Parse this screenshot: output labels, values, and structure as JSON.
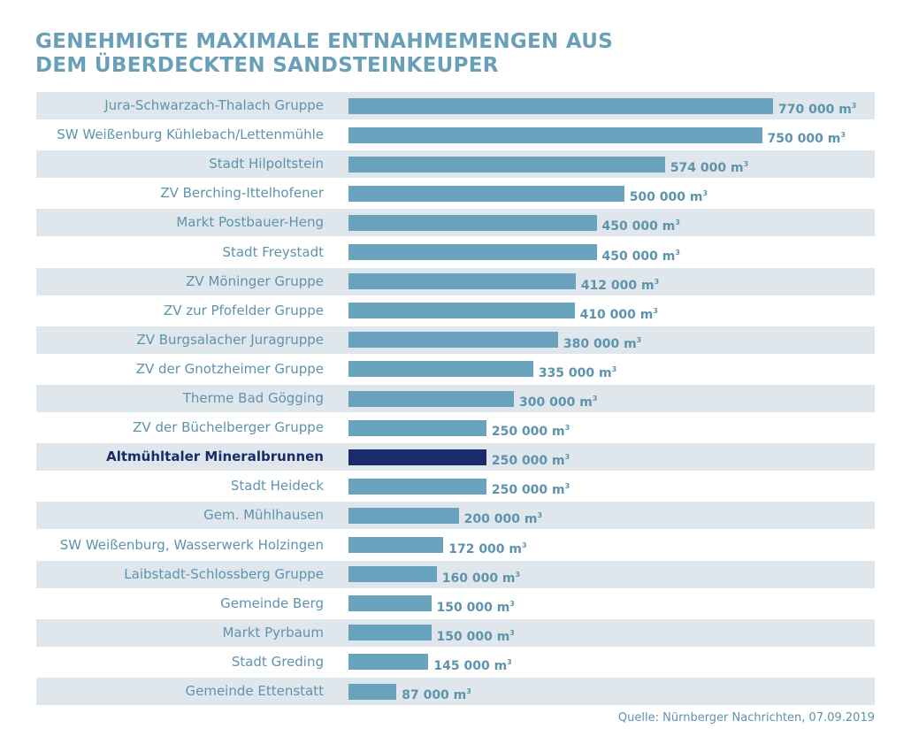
{
  "title_line1": "GENEHMIGTE MAXIMALE ENTNAHMEMENGEN AUS",
  "title_line2": "DEM ÜBERDECKTEN SANDSTEINKEUPER",
  "source": "Quelle: Nürnberger Nachrichten, 07.09.2019",
  "colors": {
    "bar": "#6aa3bd",
    "highlight": "#1b2a6b",
    "row_alt": "#dfe7ec",
    "title": "#6a9fb8"
  },
  "chart_data": {
    "type": "bar",
    "orientation": "horizontal",
    "unit": "m³",
    "max": 770000,
    "highlight": "Altmühltaler Mineralbrunnen",
    "categories": [
      "Jura-Schwarzach-Thalach Gruppe",
      "SW Weißenburg Kühlebach/Lettenmühle",
      "Stadt Hilpoltstein",
      "ZV Berching-Ittelhofener",
      "Markt Postbauer-Heng",
      "Stadt Freystadt",
      "ZV Möninger Gruppe",
      "ZV zur Pfofelder Gruppe",
      "ZV Burgsalacher Juragruppe",
      "ZV der Gnotzheimer Gruppe",
      "Therme Bad Gögging",
      "ZV der Büchelberger Gruppe",
      "Altmühltaler Mineralbrunnen",
      "Stadt Heideck",
      "Gem. Mühlhausen",
      "SW Weißenburg, Wasserwerk Holzingen",
      "Laibstadt-Schlossberg Gruppe",
      "Gemeinde Berg",
      "Markt Pyrbaum",
      "Stadt Greding",
      "Gemeinde Ettenstatt"
    ],
    "values": [
      770000,
      750000,
      574000,
      500000,
      450000,
      450000,
      412000,
      410000,
      380000,
      335000,
      300000,
      250000,
      250000,
      250000,
      200000,
      172000,
      160000,
      150000,
      150000,
      145000,
      87000
    ],
    "value_labels": [
      "770 000 m",
      "750 000 m",
      "574 000 m",
      "500 000 m",
      "450 000 m",
      "450 000 m",
      "412 000 m",
      "410 000 m",
      "380 000 m",
      "335 000 m",
      "300 000 m",
      "250 000 m",
      "250 000 m",
      "250 000 m",
      "200 000 m",
      "172 000 m",
      "160 000 m",
      "150 000 m",
      "150 000 m",
      "145 000 m",
      "87 000 m"
    ],
    "unit_superscript": "3"
  }
}
